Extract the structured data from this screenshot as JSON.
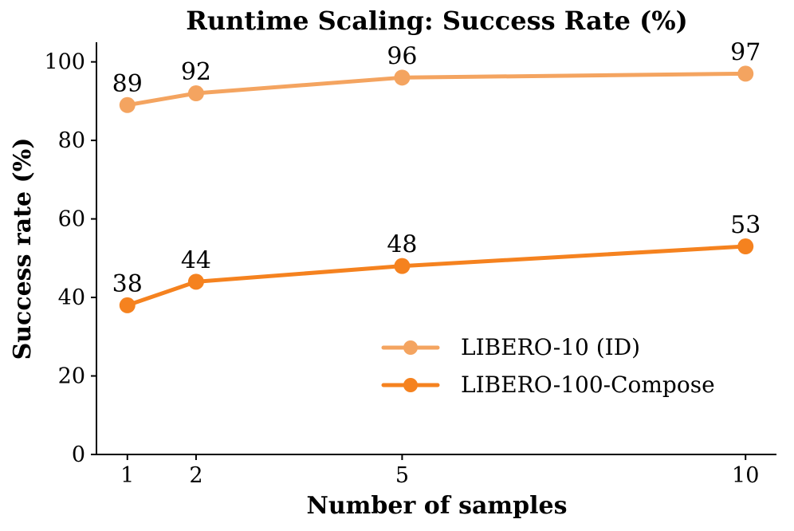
{
  "chart_data": {
    "type": "line",
    "title": "Runtime Scaling: Success Rate (%)",
    "xlabel": "Number of samples",
    "ylabel": "Success rate (%)",
    "x": [
      1,
      2,
      5,
      10
    ],
    "xticks": [
      "1",
      "2",
      "5",
      "10"
    ],
    "yticks": [
      0,
      20,
      40,
      60,
      80,
      100
    ],
    "xlim": [
      0.55,
      10.45
    ],
    "ylim": [
      0,
      105
    ],
    "grid": false,
    "point_labels": true,
    "legend_position": "center-right",
    "axis_color": "#000000",
    "text_color": "#000000",
    "series": [
      {
        "name": "LIBERO-10 (ID)",
        "color": "#F4A460",
        "values": [
          89,
          92,
          96,
          97
        ]
      },
      {
        "name": "LIBERO-100-Compose",
        "color": "#F5821F",
        "values": [
          38,
          44,
          48,
          53
        ]
      }
    ]
  }
}
